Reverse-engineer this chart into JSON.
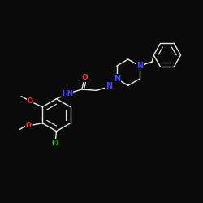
{
  "background_color": "#0a0a0a",
  "bond_color": "#e8e8e8",
  "atom_colors": {
    "N": "#4444ff",
    "O": "#ff3333",
    "Cl": "#33cc33",
    "H": "#e8e8e8"
  },
  "lw": 1.0
}
